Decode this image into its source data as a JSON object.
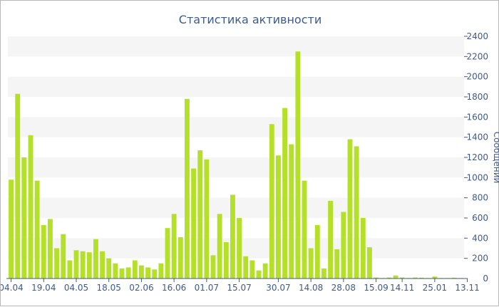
{
  "chart_data": {
    "type": "bar",
    "title": "Статистика активности",
    "ylabel": "Сообщений",
    "xlabel": "",
    "ylim": [
      0,
      2400
    ],
    "y_ticks": [
      0,
      200,
      400,
      600,
      800,
      1000,
      1200,
      1400,
      1600,
      1800,
      2000,
      2200,
      2400
    ],
    "x_tick_labels": [
      "04.04",
      "19.04",
      "04.05",
      "18.05",
      "02.06",
      "16.06",
      "01.07",
      "15.07",
      "30.07",
      "14.08",
      "28.08",
      "15.09",
      "14.11",
      "25.01",
      "13.11"
    ],
    "x_tick_bar_index": [
      0,
      5,
      10,
      15,
      20,
      25,
      30,
      35,
      41,
      46,
      51,
      56,
      60,
      65,
      70
    ],
    "values": [
      980,
      1830,
      1200,
      1420,
      970,
      530,
      590,
      300,
      440,
      180,
      280,
      270,
      260,
      390,
      270,
      200,
      150,
      100,
      110,
      180,
      130,
      110,
      90,
      150,
      500,
      640,
      410,
      1780,
      1090,
      1270,
      1180,
      230,
      640,
      360,
      830,
      600,
      220,
      180,
      80,
      150,
      1530,
      1220,
      1690,
      1330,
      2250,
      970,
      300,
      530,
      100,
      770,
      290,
      660,
      1380,
      1310,
      600,
      310,
      10,
      5,
      10,
      30,
      10,
      5,
      10,
      8,
      5,
      20,
      5,
      5,
      8,
      5
    ],
    "bar_color": "#b5e02a",
    "band_color": "#f5f5f5",
    "text_color": "#3d5a8a",
    "grid": true,
    "y_axis_position": "right"
  }
}
